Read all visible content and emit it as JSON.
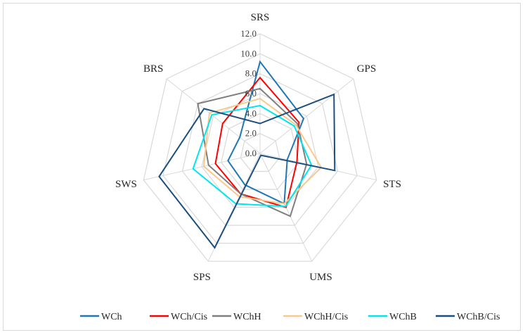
{
  "chart_data": {
    "type": "radar",
    "axes": [
      "SRS",
      "GPS",
      "STS",
      "UMS",
      "SPS",
      "SWS",
      "BRS"
    ],
    "rlim": [
      0,
      12
    ],
    "ticks": [
      "0.0",
      "2.0",
      "4.0",
      "6.0",
      "8.0",
      "10.0",
      "12.0"
    ],
    "grid": true,
    "legend_position": "bottom",
    "series": [
      {
        "name": "WCh",
        "color": "#1f77b4",
        "values": [
          9.2,
          5.6,
          2.8,
          5.6,
          3.5,
          3.3,
          2.6
        ]
      },
      {
        "name": "WCh/Cis",
        "color": "#ff0000",
        "values": [
          7.6,
          5.0,
          3.8,
          6.0,
          4.5,
          4.6,
          4.8
        ]
      },
      {
        "name": "WChH",
        "color": "#7f7f7f",
        "values": [
          6.5,
          4.8,
          4.8,
          7.0,
          4.5,
          5.3,
          8.0
        ]
      },
      {
        "name": "WChH/Cis",
        "color": "#f9c98b",
        "values": [
          5.5,
          4.6,
          6.3,
          5.6,
          4.8,
          5.8,
          6.5
        ]
      },
      {
        "name": "WChB",
        "color": "#00e5ee",
        "values": [
          4.8,
          4.4,
          5.3,
          5.9,
          5.6,
          6.9,
          6.2
        ]
      },
      {
        "name": "WChB/Cis",
        "color": "#1b4f7e",
        "values": [
          3.0,
          9.5,
          7.7,
          0.2,
          10.5,
          10.4,
          7.2
        ]
      }
    ]
  }
}
